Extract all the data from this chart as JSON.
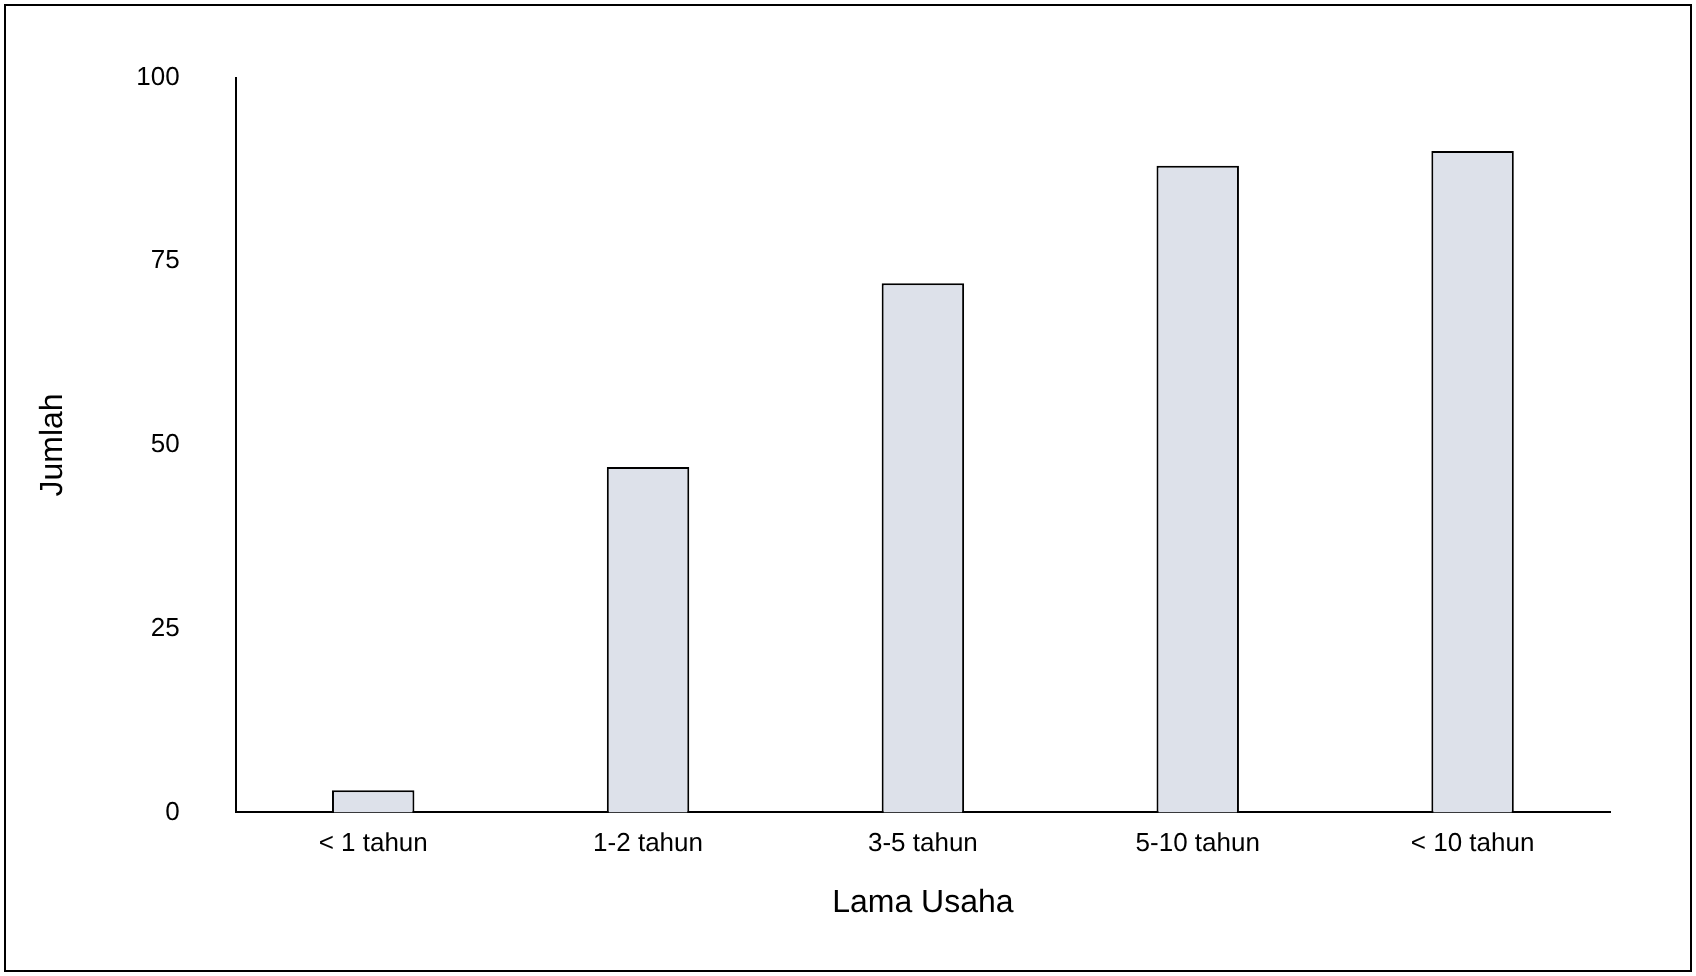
{
  "chart_data": {
    "type": "bar",
    "xlabel": "Lama Usaha",
    "ylabel": "Jumlah",
    "categories": [
      "< 1 tahun",
      "1-2 tahun",
      "3-5 tahun",
      "5-10 tahun",
      "< 10 tahun"
    ],
    "values": [
      3,
      47,
      72,
      88,
      90
    ],
    "color": "#dde1ea",
    "ylim": [
      0,
      100
    ],
    "yticks": [
      0,
      25,
      50,
      75,
      100
    ],
    "grid": false,
    "legend": false
  }
}
